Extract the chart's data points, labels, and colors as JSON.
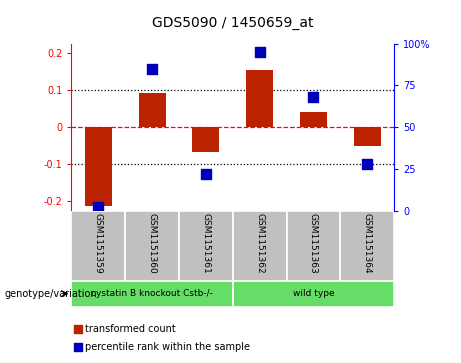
{
  "title": "GDS5090 / 1450659_at",
  "samples": [
    "GSM1151359",
    "GSM1151360",
    "GSM1151361",
    "GSM1151362",
    "GSM1151363",
    "GSM1151364"
  ],
  "transformed_count": [
    -0.212,
    0.092,
    -0.068,
    0.155,
    0.04,
    -0.05
  ],
  "percentile_rank": [
    2.0,
    85.0,
    22.0,
    95.0,
    68.0,
    28.0
  ],
  "group1_label": "cystatin B knockout Cstb-/-",
  "group2_label": "wild type",
  "group_bg_color": "#66DD66",
  "sample_bg_color": "#C0C0C0",
  "bar_color": "#BB2200",
  "dot_color": "#0000BB",
  "ylim_left": [
    -0.225,
    0.225
  ],
  "ylim_right": [
    0,
    100
  ],
  "yticks_left": [
    -0.2,
    -0.1,
    0.0,
    0.1,
    0.2
  ],
  "ytick_labels_left": [
    "-0.2",
    "-0.1",
    "0",
    "0.1",
    "0.2"
  ],
  "yticks_right": [
    0,
    25,
    50,
    75,
    100
  ],
  "ytick_labels_right": [
    "0",
    "25",
    "50",
    "75",
    "100%"
  ],
  "hlines": [
    -0.1,
    0.0,
    0.1
  ],
  "hline_styles": [
    "dotted",
    "dashed",
    "dotted"
  ],
  "hline_colors": [
    "black",
    "red",
    "black"
  ],
  "legend_items": [
    "transformed count",
    "percentile rank within the sample"
  ],
  "legend_colors": [
    "#BB2200",
    "#0000BB"
  ],
  "genotype_label": "genotype/variation",
  "bar_width": 0.5,
  "dot_size": 45
}
